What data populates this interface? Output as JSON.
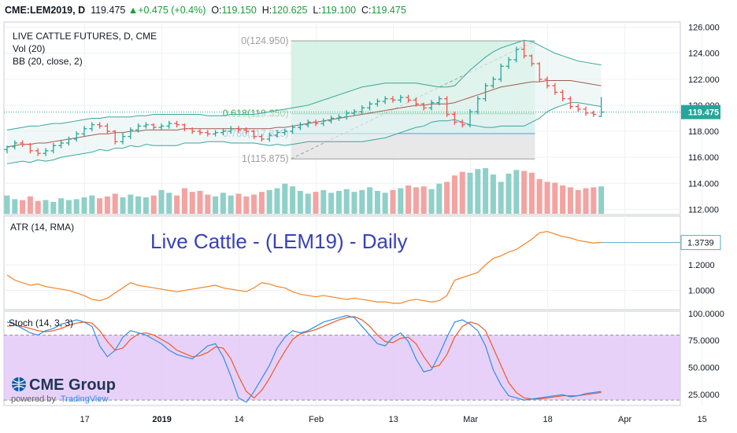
{
  "header": {
    "symbol": "CME:LEM2019, D",
    "last": "119.475",
    "change": "+0.475 (+0.4%)",
    "open_label": "O:",
    "open": "119.150",
    "high_label": "H:",
    "high": "120.625",
    "low_label": "L:",
    "low": "119.100",
    "close_label": "C:",
    "close": "119.475"
  },
  "legend": {
    "title": "LIVE CATTLE FUTURES, D, CME",
    "vol": "Vol (20)",
    "bb": "BB (20, close, 2)",
    "atr": "ATR (14, RMA)",
    "stoch": "Stoch (14, 3, 3)"
  },
  "overlay_title": "Live Cattle - (LEM19) - Daily",
  "branding": {
    "logo": "CME Group",
    "powered": "powered by",
    "tv": "TradingView"
  },
  "colors": {
    "up": "#26a69a",
    "down": "#ef5350",
    "bb_band": "#3aa59b",
    "bb_basis": "#a35b4e",
    "atr_line": "#f58220",
    "stoch_k": "#2f8fe6",
    "stoch_d": "#f0582a",
    "stoch_zone": "#e2c6f6",
    "overlay_title": "#3742b8",
    "fib_upper_zone": "#d3f1e3",
    "fib_lower_zone": "#e6e6e6"
  },
  "chart_data": [
    {
      "type": "candlestick",
      "name": "price",
      "y_ticks": [
        "112.000",
        "114.000",
        "116.000",
        "118.000",
        "120.000",
        "122.000",
        "124.000",
        "126.000"
      ],
      "ylim": [
        111.6,
        126.4
      ],
      "last_price_label": "119.475",
      "x_tick_labels": [
        "17",
        "2019",
        "14",
        "Feb",
        "13",
        "Mar",
        "18",
        "Apr",
        "15"
      ],
      "x_tick_index": [
        7,
        17,
        27,
        37,
        47,
        57,
        67,
        77,
        87
      ],
      "closes": [
        116.8,
        117.1,
        117.0,
        116.5,
        116.3,
        116.5,
        116.9,
        117.1,
        117.4,
        117.8,
        118.2,
        118.5,
        118.4,
        118.0,
        117.2,
        117.6,
        118.1,
        118.4,
        118.5,
        118.3,
        118.4,
        118.6,
        118.5,
        118.2,
        118.0,
        117.9,
        117.8,
        117.9,
        118.0,
        118.2,
        118.1,
        118.0,
        117.6,
        117.4,
        117.7,
        117.9,
        118.0,
        118.3,
        118.5,
        118.7,
        118.6,
        118.8,
        119.0,
        119.1,
        119.4,
        119.5,
        119.8,
        120.1,
        120.3,
        120.5,
        120.4,
        120.6,
        120.4,
        120.1,
        119.8,
        120.2,
        120.5,
        119.3,
        118.7,
        118.5,
        119.5,
        120.5,
        121.5,
        122.0,
        123.0,
        123.5,
        124.3,
        123.8,
        123.2,
        122.0,
        121.5,
        121.0,
        120.5,
        119.9,
        119.7,
        119.4,
        119.3,
        119.475
      ],
      "opens": [
        116.6,
        116.8,
        117.1,
        117.0,
        116.5,
        116.3,
        116.5,
        116.9,
        117.1,
        117.4,
        117.8,
        118.2,
        118.5,
        118.4,
        118.0,
        117.2,
        117.6,
        118.1,
        118.4,
        118.5,
        118.3,
        118.4,
        118.6,
        118.5,
        118.2,
        118.0,
        117.9,
        117.8,
        117.9,
        118.0,
        118.2,
        118.1,
        118.0,
        117.6,
        117.4,
        117.7,
        117.9,
        118.0,
        118.3,
        118.5,
        118.7,
        118.6,
        118.8,
        119.0,
        119.1,
        119.4,
        119.5,
        119.8,
        120.1,
        120.3,
        120.5,
        120.4,
        120.6,
        120.4,
        120.1,
        119.8,
        120.2,
        120.5,
        119.3,
        118.7,
        118.5,
        119.5,
        120.5,
        121.5,
        122.0,
        123.0,
        123.5,
        124.3,
        123.8,
        123.2,
        122.0,
        121.5,
        121.0,
        120.5,
        119.9,
        119.7,
        119.4,
        119.15
      ],
      "highs": [
        116.9,
        117.3,
        117.3,
        117.1,
        116.7,
        116.7,
        117.1,
        117.3,
        117.6,
        118.0,
        118.4,
        118.7,
        118.7,
        118.6,
        118.1,
        117.9,
        118.3,
        118.6,
        118.7,
        118.6,
        118.6,
        118.8,
        118.8,
        118.6,
        118.3,
        118.2,
        118.1,
        118.1,
        118.2,
        118.4,
        118.4,
        118.3,
        118.1,
        117.8,
        117.9,
        118.1,
        118.2,
        118.5,
        118.7,
        118.9,
        118.9,
        119.0,
        119.2,
        119.3,
        119.6,
        119.7,
        120.0,
        120.3,
        120.5,
        120.7,
        120.7,
        120.8,
        120.8,
        120.6,
        120.2,
        120.4,
        120.7,
        120.7,
        119.5,
        118.9,
        119.7,
        120.7,
        121.7,
        122.2,
        123.2,
        123.7,
        124.5,
        124.95,
        123.9,
        123.3,
        122.2,
        121.7,
        121.2,
        120.7,
        120.1,
        119.9,
        119.6,
        120.625
      ],
      "lows": [
        116.3,
        116.6,
        116.8,
        116.3,
        116.1,
        116.1,
        116.3,
        116.7,
        116.9,
        117.2,
        117.6,
        118.0,
        118.2,
        117.8,
        117.0,
        117.0,
        117.4,
        117.9,
        118.2,
        118.1,
        118.1,
        118.2,
        118.3,
        118.0,
        117.8,
        117.7,
        117.6,
        117.6,
        117.7,
        117.8,
        117.9,
        117.8,
        117.4,
        117.2,
        117.2,
        117.5,
        117.7,
        117.8,
        118.1,
        118.3,
        118.4,
        118.4,
        118.6,
        118.8,
        118.9,
        119.2,
        119.3,
        119.6,
        119.9,
        120.1,
        120.2,
        120.2,
        120.2,
        119.9,
        119.6,
        119.6,
        120.0,
        119.1,
        118.5,
        118.3,
        118.3,
        119.3,
        120.3,
        121.3,
        121.8,
        122.8,
        123.3,
        123.6,
        123.0,
        121.8,
        121.3,
        120.8,
        120.3,
        119.7,
        119.5,
        119.2,
        119.1,
        119.1
      ],
      "bollinger": {
        "upper": [
          118.1,
          118.2,
          118.3,
          118.4,
          118.4,
          118.5,
          118.6,
          118.6,
          118.7,
          118.8,
          118.9,
          119.0,
          119.0,
          119.1,
          119.1,
          119.1,
          119.1,
          119.2,
          119.2,
          119.3,
          119.3,
          119.3,
          119.3,
          119.3,
          119.3,
          119.3,
          119.2,
          119.2,
          119.2,
          119.3,
          119.3,
          119.3,
          119.3,
          119.4,
          119.5,
          119.6,
          119.7,
          119.8,
          119.9,
          120.0,
          120.2,
          120.4,
          120.6,
          120.8,
          121.0,
          121.2,
          121.4,
          121.5,
          121.6,
          121.7,
          121.7,
          121.7,
          121.7,
          121.7,
          121.6,
          121.5,
          121.4,
          121.4,
          121.5,
          122.1,
          122.7,
          123.2,
          123.7,
          124.1,
          124.4,
          124.6,
          124.8,
          125.0,
          124.9,
          124.6,
          124.3,
          124.0,
          123.8,
          123.6,
          123.4,
          123.3,
          123.2,
          123.1
        ],
        "basis": [
          116.8,
          116.9,
          117.0,
          117.0,
          117.1,
          117.1,
          117.2,
          117.3,
          117.4,
          117.5,
          117.6,
          117.7,
          117.8,
          117.8,
          117.9,
          117.9,
          118.0,
          118.0,
          118.1,
          118.1,
          118.1,
          118.1,
          118.1,
          118.2,
          118.2,
          118.2,
          118.2,
          118.2,
          118.2,
          118.2,
          118.2,
          118.2,
          118.2,
          118.2,
          118.2,
          118.3,
          118.3,
          118.4,
          118.5,
          118.6,
          118.7,
          118.8,
          118.9,
          119.0,
          119.1,
          119.2,
          119.3,
          119.4,
          119.5,
          119.6,
          119.7,
          119.8,
          119.9,
          120.0,
          120.0,
          120.1,
          120.1,
          120.1,
          120.2,
          120.4,
          120.6,
          120.8,
          121.0,
          121.2,
          121.4,
          121.5,
          121.6,
          121.7,
          121.8,
          121.8,
          121.9,
          121.9,
          121.9,
          121.9,
          121.8,
          121.7,
          121.6,
          121.5
        ],
        "lower": [
          115.5,
          115.6,
          115.7,
          115.6,
          115.8,
          115.7,
          115.8,
          116.0,
          116.1,
          116.2,
          116.3,
          116.4,
          116.6,
          116.5,
          116.7,
          116.7,
          116.9,
          116.8,
          117.0,
          116.9,
          116.9,
          116.9,
          116.9,
          117.1,
          117.1,
          117.1,
          117.2,
          117.2,
          117.2,
          117.1,
          117.1,
          117.1,
          117.1,
          117.0,
          116.9,
          117.0,
          116.9,
          117.0,
          117.1,
          117.2,
          117.2,
          117.2,
          117.2,
          117.2,
          117.2,
          117.2,
          117.2,
          117.3,
          117.4,
          117.5,
          117.7,
          117.9,
          118.1,
          118.3,
          118.4,
          118.7,
          118.8,
          118.8,
          118.9,
          118.7,
          118.5,
          118.4,
          118.3,
          118.3,
          118.4,
          118.4,
          118.4,
          118.4,
          118.7,
          119.0,
          119.5,
          119.8,
          120.0,
          120.2,
          120.2,
          120.1,
          120.0,
          119.9
        ]
      },
      "fibonacci": [
        {
          "ratio": "0",
          "price": "124.950",
          "label": "0(124.950)"
        },
        {
          "ratio": "0.618",
          "price": "119.350",
          "label": "0.618(119.350)"
        },
        {
          "ratio": "0.786",
          "price": "117.825",
          "label": "0.786(117.825)"
        },
        {
          "ratio": "1",
          "price": "115.875",
          "label": "1(115.875)"
        }
      ],
      "fib_range": {
        "start_index": 37,
        "end_index": 68,
        "top": 124.95,
        "mid": 119.35,
        "mid2": 117.825,
        "bottom": 115.875
      }
    },
    {
      "type": "bar",
      "name": "volume",
      "values": [
        40,
        32,
        30,
        38,
        28,
        30,
        26,
        34,
        30,
        32,
        36,
        40,
        34,
        38,
        44,
        36,
        42,
        38,
        36,
        40,
        52,
        46,
        40,
        56,
        48,
        50,
        42,
        38,
        46,
        40,
        44,
        38,
        42,
        48,
        52,
        56,
        66,
        60,
        50,
        44,
        48,
        52,
        46,
        50,
        54,
        48,
        52,
        58,
        50,
        46,
        52,
        56,
        62,
        58,
        60,
        54,
        66,
        70,
        84,
        92,
        90,
        98,
        100,
        86,
        70,
        88,
        96,
        94,
        90,
        76,
        70,
        68,
        62,
        58,
        52,
        56,
        58,
        60
      ]
    },
    {
      "type": "line",
      "name": "ATR (14, RMA)",
      "y_ticks": [
        "1.0000",
        "1.2000"
      ],
      "ylim": [
        0.85,
        1.58
      ],
      "last_label": "1.3739",
      "values": [
        1.12,
        1.08,
        1.06,
        1.04,
        1.05,
        1.03,
        1.02,
        1.01,
        1.0,
        0.98,
        0.96,
        0.93,
        0.92,
        0.94,
        0.98,
        1.02,
        1.06,
        1.04,
        1.03,
        1.02,
        1.01,
        1.0,
        0.99,
        1.0,
        1.01,
        1.02,
        1.03,
        1.04,
        1.02,
        1.01,
        1.0,
        0.99,
        1.02,
        1.06,
        1.05,
        1.03,
        1.02,
        0.99,
        0.97,
        0.96,
        0.95,
        0.96,
        0.95,
        0.94,
        0.93,
        0.94,
        0.93,
        0.92,
        0.91,
        0.91,
        0.9,
        0.9,
        0.92,
        0.93,
        0.92,
        0.91,
        0.92,
        0.96,
        1.08,
        1.1,
        1.12,
        1.14,
        1.2,
        1.25,
        1.27,
        1.3,
        1.32,
        1.36,
        1.4,
        1.45,
        1.46,
        1.44,
        1.42,
        1.41,
        1.39,
        1.38,
        1.37,
        1.3739
      ]
    },
    {
      "type": "line",
      "name": "Stoch (14, 3, 3)",
      "y_ticks": [
        "25.0000",
        "50.0000",
        "75.0000",
        "100.0000"
      ],
      "ylim": [
        15,
        102
      ],
      "band": [
        20,
        80
      ],
      "k": [
        92,
        90,
        86,
        82,
        80,
        84,
        86,
        90,
        92,
        94,
        92,
        88,
        70,
        60,
        66,
        78,
        84,
        82,
        80,
        76,
        72,
        66,
        62,
        60,
        58,
        64,
        70,
        72,
        60,
        42,
        22,
        18,
        28,
        40,
        52,
        68,
        78,
        84,
        82,
        84,
        88,
        92,
        94,
        96,
        98,
        96,
        88,
        80,
        72,
        70,
        78,
        82,
        74,
        58,
        46,
        48,
        62,
        78,
        92,
        94,
        90,
        84,
        70,
        48,
        34,
        24,
        22,
        20,
        21,
        22,
        23,
        24,
        25,
        23,
        24,
        26,
        27,
        28
      ],
      "d": [
        88,
        89,
        88,
        86,
        84,
        83,
        84,
        86,
        89,
        91,
        92,
        91,
        84,
        74,
        66,
        68,
        76,
        81,
        82,
        80,
        76,
        72,
        66,
        63,
        60,
        61,
        64,
        69,
        68,
        58,
        42,
        28,
        22,
        29,
        40,
        53,
        65,
        76,
        81,
        83,
        85,
        88,
        91,
        94,
        96,
        97,
        94,
        88,
        80,
        74,
        73,
        77,
        78,
        72,
        60,
        50,
        52,
        62,
        78,
        88,
        92,
        90,
        84,
        68,
        52,
        36,
        27,
        22,
        21,
        21,
        22,
        23,
        24,
        24,
        24,
        25,
        26,
        27
      ]
    }
  ]
}
